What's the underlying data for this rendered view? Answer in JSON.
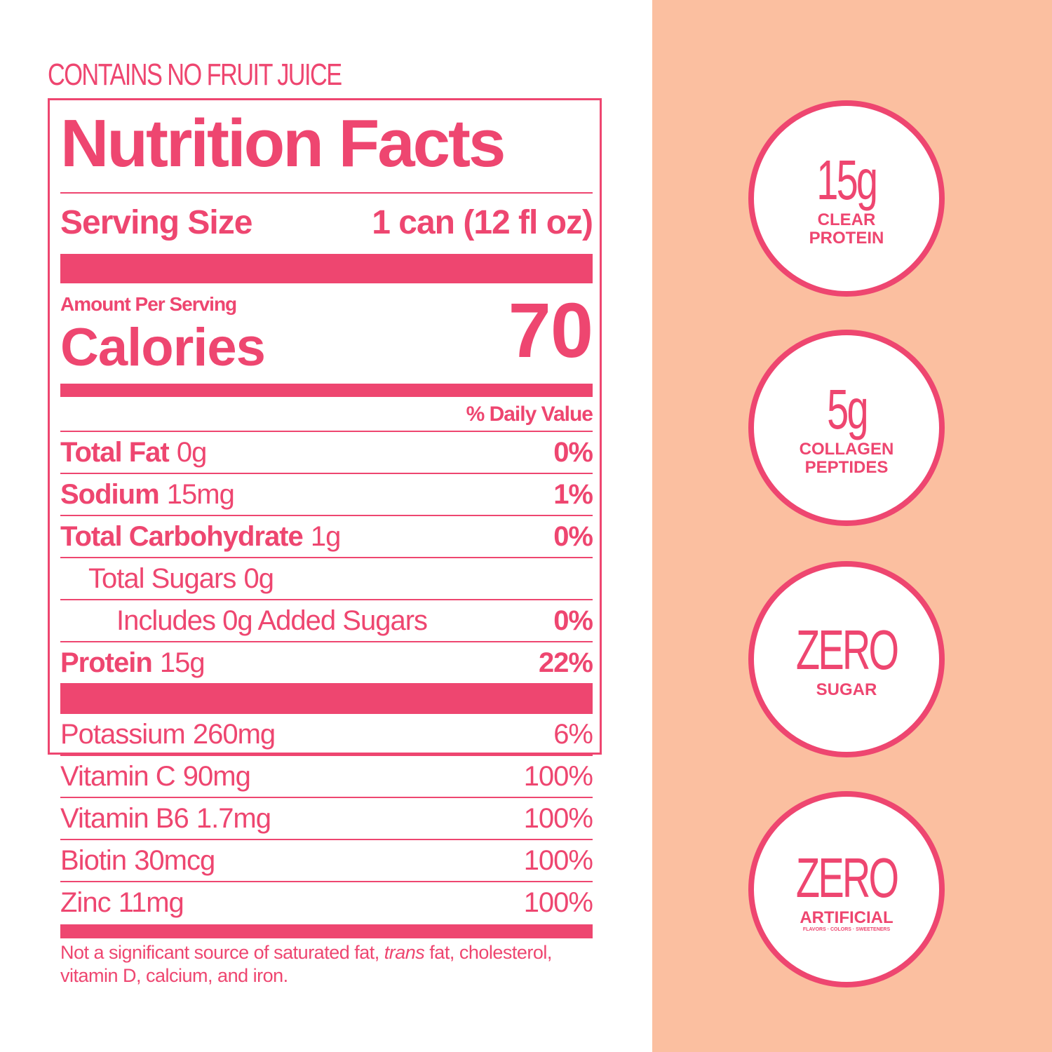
{
  "header": {
    "note": "CONTAINS NO FRUIT JUICE"
  },
  "label": {
    "title": "Nutrition Facts",
    "serving_size": {
      "label": "Serving Size",
      "value": "1 can (12 fl oz)"
    },
    "amount_per_serving": "Amount Per Serving",
    "calories": {
      "label": "Calories",
      "value": "70"
    },
    "daily_value_header": "% Daily Value",
    "nutrients": [
      {
        "name": "Total Fat",
        "amount": "0g",
        "dv": "0%"
      },
      {
        "name": "Sodium",
        "amount": "15mg",
        "dv": "1%"
      },
      {
        "name": "Total Carbohydrate",
        "amount": "1g",
        "dv": "0%",
        "sub": [
          {
            "name": "Total Sugars",
            "amount": "0g",
            "sub": [
              {
                "name": "Includes 0g Added Sugars",
                "dv": "0%"
              }
            ]
          }
        ]
      },
      {
        "name": "Protein",
        "amount": "15g",
        "dv": "22%"
      }
    ],
    "vitamins": [
      {
        "name": "Potassium",
        "amount": "260mg",
        "dv": "6%"
      },
      {
        "name": "Vitamin C",
        "amount": "90mg",
        "dv": "100%"
      },
      {
        "name": "Vitamin B6",
        "amount": "1.7mg",
        "dv": "100%"
      },
      {
        "name": "Biotin",
        "amount": "30mcg",
        "dv": "100%"
      },
      {
        "name": "Zinc",
        "amount": "11mg",
        "dv": "100%"
      }
    ],
    "footnote": [
      "Not a significant source of saturated fat, ",
      "trans",
      " fat, cholesterol, vitamin D, calcium, and iron."
    ]
  },
  "badges": [
    {
      "big": "15g",
      "small": [
        "CLEAR",
        "PROTEIN"
      ]
    },
    {
      "big": "5g",
      "small": [
        "COLLAGEN",
        "PEPTIDES"
      ]
    },
    {
      "big": "ZERO",
      "small": [
        "SUGAR"
      ]
    },
    {
      "big": "ZERO",
      "small": [
        "ARTIFICIAL"
      ],
      "tiny": "FLAVORS · COLORS · SWEETENERS"
    }
  ]
}
